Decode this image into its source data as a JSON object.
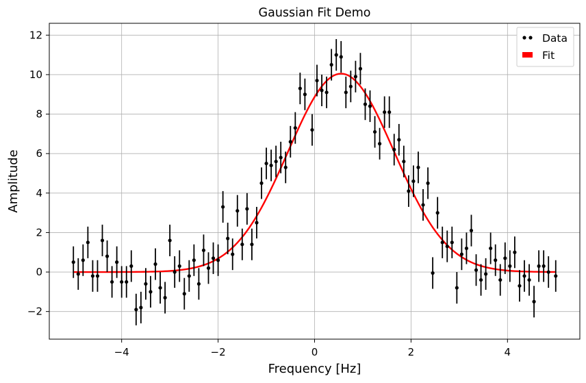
{
  "chart_data": {
    "type": "scatter",
    "title": "Gaussian Fit Demo",
    "xlabel": "Frequency [Hz]",
    "ylabel": "Amplitude",
    "xlim": [
      -5.5,
      5.5
    ],
    "ylim": [
      -3.4,
      12.6
    ],
    "xticks": [
      -4,
      -2,
      0,
      2,
      4
    ],
    "yticks": [
      -2,
      0,
      2,
      4,
      6,
      8,
      10,
      12
    ],
    "xtick_labels": [
      "−4",
      "−2",
      "0",
      "2",
      "4"
    ],
    "ytick_labels": [
      "−2",
      "0",
      "2",
      "4",
      "6",
      "8",
      "10",
      "12"
    ],
    "grid": true,
    "legend_position": "top-right",
    "legend": [
      "Data",
      "Fit"
    ],
    "series": [
      {
        "name": "Data",
        "kind": "errorbar",
        "color": "#000000",
        "yerr": 0.8,
        "points": [
          [
            -5.0,
            0.5
          ],
          [
            -4.9,
            -0.1
          ],
          [
            -4.8,
            0.6
          ],
          [
            -4.7,
            1.5
          ],
          [
            -4.6,
            -0.2
          ],
          [
            -4.5,
            -0.2
          ],
          [
            -4.4,
            1.6
          ],
          [
            -4.3,
            0.8
          ],
          [
            -4.2,
            -0.5
          ],
          [
            -4.1,
            0.5
          ],
          [
            -4.0,
            -0.5
          ],
          [
            -3.9,
            -0.5
          ],
          [
            -3.8,
            0.3
          ],
          [
            -3.7,
            -1.9
          ],
          [
            -3.6,
            -1.8
          ],
          [
            -3.5,
            -0.6
          ],
          [
            -3.4,
            -1.0
          ],
          [
            -3.3,
            0.4
          ],
          [
            -3.2,
            -0.8
          ],
          [
            -3.1,
            -1.3
          ],
          [
            -3.0,
            1.6
          ],
          [
            -2.9,
            0.0
          ],
          [
            -2.8,
            0.3
          ],
          [
            -2.7,
            -1.1
          ],
          [
            -2.6,
            -0.2
          ],
          [
            -2.5,
            0.6
          ],
          [
            -2.4,
            -0.6
          ],
          [
            -2.3,
            1.1
          ],
          [
            -2.2,
            0.2
          ],
          [
            -2.1,
            0.7
          ],
          [
            -2.0,
            0.6
          ],
          [
            -1.9,
            3.3
          ],
          [
            -1.8,
            1.7
          ],
          [
            -1.7,
            0.9
          ],
          [
            -1.6,
            3.1
          ],
          [
            -1.5,
            1.4
          ],
          [
            -1.4,
            3.2
          ],
          [
            -1.3,
            1.4
          ],
          [
            -1.2,
            2.5
          ],
          [
            -1.1,
            4.5
          ],
          [
            -1.0,
            5.5
          ],
          [
            -0.9,
            5.4
          ],
          [
            -0.8,
            5.6
          ],
          [
            -0.7,
            5.8
          ],
          [
            -0.6,
            5.3
          ],
          [
            -0.5,
            6.6
          ],
          [
            -0.4,
            7.3
          ],
          [
            -0.3,
            9.3
          ],
          [
            -0.2,
            9.0
          ],
          [
            -0.05,
            7.2
          ],
          [
            0.05,
            9.7
          ],
          [
            0.15,
            9.2
          ],
          [
            0.25,
            9.1
          ],
          [
            0.35,
            10.5
          ],
          [
            0.45,
            11.0
          ],
          [
            0.55,
            10.9
          ],
          [
            0.65,
            9.1
          ],
          [
            0.75,
            9.4
          ],
          [
            0.85,
            9.9
          ],
          [
            0.95,
            10.3
          ],
          [
            1.05,
            8.5
          ],
          [
            1.15,
            8.4
          ],
          [
            1.25,
            7.1
          ],
          [
            1.35,
            6.5
          ],
          [
            1.45,
            8.1
          ],
          [
            1.55,
            8.1
          ],
          [
            1.65,
            6.2
          ],
          [
            1.75,
            6.7
          ],
          [
            1.85,
            5.6
          ],
          [
            1.95,
            4.1
          ],
          [
            2.05,
            4.6
          ],
          [
            2.15,
            5.3
          ],
          [
            2.25,
            3.4
          ],
          [
            2.35,
            4.5
          ],
          [
            2.45,
            -0.05
          ],
          [
            2.55,
            3.0
          ],
          [
            2.65,
            1.5
          ],
          [
            2.75,
            1.3
          ],
          [
            2.85,
            1.5
          ],
          [
            2.95,
            -0.8
          ],
          [
            3.05,
            0.9
          ],
          [
            3.15,
            1.2
          ],
          [
            3.25,
            2.1
          ],
          [
            3.35,
            0.1
          ],
          [
            3.45,
            -0.4
          ],
          [
            3.55,
            -0.1
          ],
          [
            3.65,
            1.2
          ],
          [
            3.75,
            0.6
          ],
          [
            3.85,
            -0.4
          ],
          [
            3.95,
            0.7
          ],
          [
            4.05,
            0.3
          ],
          [
            4.15,
            1.0
          ],
          [
            4.25,
            -0.7
          ],
          [
            4.35,
            -0.2
          ],
          [
            4.45,
            -0.4
          ],
          [
            4.55,
            -1.5
          ],
          [
            4.65,
            0.3
          ],
          [
            4.75,
            0.3
          ],
          [
            4.85,
            0.0
          ],
          [
            5.0,
            -0.2
          ]
        ]
      },
      {
        "name": "Fit",
        "kind": "line",
        "color": "#ff0000",
        "model": "gaussian",
        "amplitude": 10.05,
        "center": 0.55,
        "sigma": 1.1,
        "x_range": [
          -5.0,
          5.0
        ]
      }
    ]
  }
}
